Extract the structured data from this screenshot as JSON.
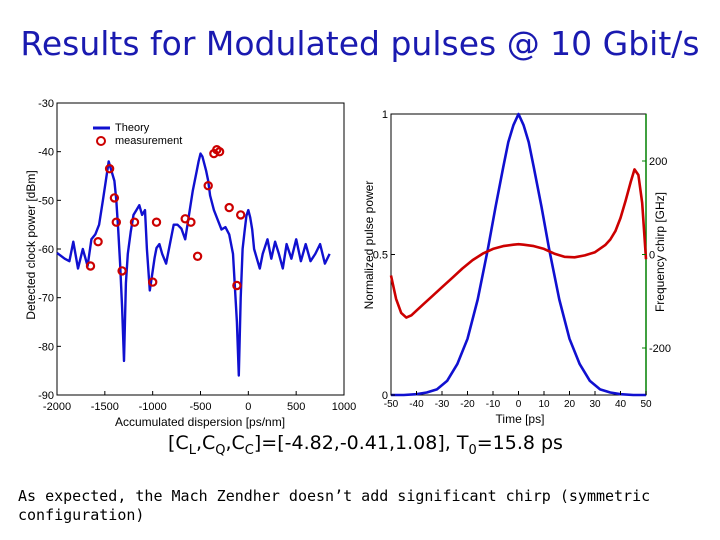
{
  "slide": {
    "title": "Results for Modulated pulses @ 10 Gbit/s",
    "params": {
      "lhs_open": "[C",
      "sub_l": "L",
      "sep1": ",C",
      "sub_q": "Q",
      "sep2": ",C",
      "sub_c": "C",
      "rhs": "]=[-4.82,-0.41,1.08], T",
      "sub_0": "0",
      "tail": "=15.8 ps"
    },
    "caption": "As expected, the Mach Zendher doesn’t add significant chirp (symmetric configuration)"
  },
  "colors": {
    "title": "#1a1ab0",
    "theory": "#1010d0",
    "measurement": "#cc0000",
    "pulse": "#1010d0",
    "chirp": "#cc0000",
    "chirp_axis": "#008000"
  },
  "chart_data": [
    {
      "type": "line",
      "xlabel": "Accumulated dispersion [ps/nm]",
      "ylabel": "Detected clock power [dBm]",
      "xlim": [
        -2000,
        1000
      ],
      "ylim": [
        -90,
        -30
      ],
      "xticks": [
        -2000,
        -1500,
        -1000,
        -500,
        0,
        500,
        1000
      ],
      "yticks": [
        -90,
        -80,
        -70,
        -60,
        -50,
        -40,
        -30
      ],
      "grid": false,
      "legend": "top-left",
      "series": [
        {
          "name": "Theory",
          "style": "line",
          "x": [
            -2000,
            -1920,
            -1870,
            -1830,
            -1780,
            -1730,
            -1680,
            -1640,
            -1600,
            -1560,
            -1520,
            -1490,
            -1460,
            -1430,
            -1400,
            -1380,
            -1360,
            -1340,
            -1320,
            -1300,
            -1280,
            -1260,
            -1230,
            -1200,
            -1170,
            -1140,
            -1110,
            -1080,
            -1060,
            -1030,
            -1000,
            -980,
            -960,
            -930,
            -900,
            -860,
            -820,
            -780,
            -740,
            -700,
            -660,
            -620,
            -580,
            -540,
            -520,
            -500,
            -480,
            -440,
            -420,
            -400,
            -360,
            -320,
            -280,
            -240,
            -200,
            -160,
            -120,
            -100,
            -80,
            -60,
            -40,
            -20,
            0,
            20,
            40,
            60,
            90,
            120,
            150,
            200,
            240,
            280,
            320,
            360,
            400,
            450,
            500,
            550,
            600,
            650,
            700,
            750,
            800,
            850
          ],
          "y": [
            -60.8,
            -62,
            -62.5,
            -58.5,
            -64,
            -60,
            -63.5,
            -58,
            -57,
            -55,
            -50,
            -46,
            -42,
            -44,
            -46,
            -50,
            -56,
            -63,
            -72,
            -83,
            -67,
            -61,
            -56.5,
            -53,
            -52,
            -51,
            -53,
            -52,
            -60,
            -68.5,
            -64.5,
            -61.8,
            -59.8,
            -59,
            -61,
            -63,
            -59,
            -55,
            -55,
            -55.8,
            -58,
            -53,
            -48,
            -44,
            -42,
            -40.4,
            -41,
            -44,
            -46,
            -49,
            -52,
            -54,
            -56,
            -55.5,
            -57,
            -61,
            -75,
            -86,
            -70,
            -60,
            -56.5,
            -53.2,
            -52,
            -53.5,
            -56,
            -60,
            -62,
            -64,
            -61,
            -58,
            -62,
            -58.5,
            -61,
            -64,
            -59,
            -62,
            -58,
            -62.5,
            -59,
            -62.5,
            -61,
            -59,
            -63,
            -61
          ]
        },
        {
          "name": "measurement",
          "style": "markers",
          "x": [
            -1650,
            -1570,
            -1450,
            -1400,
            -1380,
            -1320,
            -1190,
            -1000,
            -960,
            -660,
            -600,
            -530,
            -420,
            -360,
            -330,
            -300,
            -200,
            -120,
            -80
          ],
          "y": [
            -63.5,
            -58.5,
            -43.5,
            -49.5,
            -54.5,
            -64.5,
            -54.5,
            -66.8,
            -54.5,
            -53.8,
            -54.5,
            -61.5,
            -47,
            -40.4,
            -39.6,
            -40,
            -51.5,
            -67.5,
            -53
          ]
        }
      ]
    },
    {
      "type": "line",
      "xlabel": "Time [ps]",
      "ylabel": "Normalized pulse power",
      "y2label": "Frequency chirp [GHz]",
      "xlim": [
        -50,
        50
      ],
      "ylim": [
        0,
        1
      ],
      "y2lim": [
        -200,
        200
      ],
      "xticks": [
        -50,
        -40,
        -30,
        -20,
        -10,
        0,
        10,
        20,
        30,
        40,
        50
      ],
      "yticks": [
        0,
        0.5,
        1
      ],
      "y2ticks": [
        -200,
        0,
        200
      ],
      "grid": false,
      "series": [
        {
          "name": "",
          "axis": "left",
          "x": [
            -50,
            -45,
            -40,
            -36,
            -32,
            -28,
            -24,
            -20,
            -16,
            -12,
            -9,
            -6,
            -4,
            -2,
            0,
            2,
            4,
            6,
            9,
            12,
            16,
            20,
            24,
            28,
            32,
            36,
            40,
            45,
            50
          ],
          "y": [
            0.0,
            0.0,
            0.003,
            0.009,
            0.02,
            0.05,
            0.11,
            0.2,
            0.34,
            0.52,
            0.67,
            0.81,
            0.9,
            0.96,
            1.0,
            0.96,
            0.9,
            0.81,
            0.67,
            0.52,
            0.34,
            0.2,
            0.11,
            0.05,
            0.02,
            0.009,
            0.003,
            0.0,
            0.0
          ]
        },
        {
          "name": "",
          "axis": "right",
          "x": [
            -50,
            -48,
            -46,
            -44,
            -42,
            -40,
            -37,
            -34,
            -30,
            -26,
            -22,
            -18,
            -14,
            -10,
            -6,
            -2,
            0,
            2,
            6,
            10,
            14,
            18,
            22,
            26,
            30,
            34,
            36,
            38,
            40,
            42,
            44,
            45.5,
            47,
            48.5,
            50
          ],
          "y": [
            -45,
            -95,
            -125,
            -135,
            -130,
            -120,
            -105,
            -90,
            -70,
            -50,
            -30,
            -12,
            2,
            12,
            18,
            21,
            22,
            21,
            18,
            12,
            2,
            -5,
            -6,
            -2,
            5,
            20,
            32,
            50,
            78,
            115,
            155,
            182,
            170,
            110,
            -10
          ]
        }
      ]
    }
  ]
}
